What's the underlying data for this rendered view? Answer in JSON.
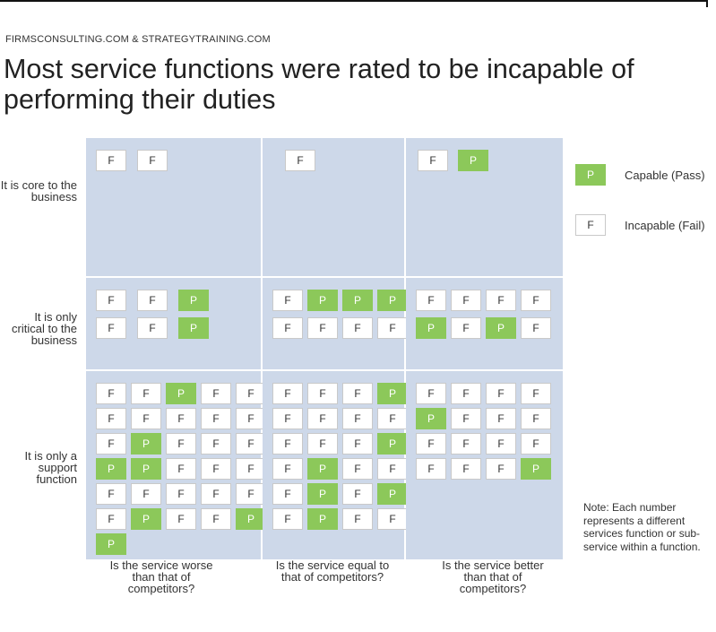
{
  "source": "FIRMSCONSULTING.COM & STRATEGYTRAINING.COM",
  "title": "Most service functions were rated to be incapable of performing their duties",
  "rows": [
    {
      "label": "It is core to the business"
    },
    {
      "label": "It is only critical to the business"
    },
    {
      "label": "It is only a support function"
    }
  ],
  "columns": [
    {
      "label": "Is the service worse than that of competitors?"
    },
    {
      "label": "Is the service equal to that of competitors?"
    },
    {
      "label": "Is the service better than that of competitors?"
    }
  ],
  "legend": [
    {
      "code": "P",
      "label": "Capable (Pass)",
      "color": "#8cc85a"
    },
    {
      "code": "F",
      "label": "Incapable (Fail)",
      "color": "#ffffff"
    }
  ],
  "note": "Note: Each number represents a different services function or sub-service within a function.",
  "colors": {
    "cell_background": "#cdd8e9",
    "pass": "#8cc85a",
    "fail": "#ffffff"
  },
  "matrix": [
    [
      [
        "F F"
      ],
      [
        "F"
      ],
      [
        "F P"
      ]
    ],
    [
      [
        "F F P",
        "F F P"
      ],
      [
        "F P P P",
        "F F F F"
      ],
      [
        "F F F F",
        "P F P F"
      ]
    ],
    [
      [
        "F F P F F",
        "F F F F F",
        "F P F F F",
        "P P F F F",
        "F F F F F",
        "F P F F P",
        "P"
      ],
      [
        "F F F P",
        "F F F F",
        "F F F P",
        "F P F F",
        "F P F P",
        "F P F F"
      ],
      [
        "F F F F",
        "P F F F",
        "F F F F",
        "F F F P"
      ]
    ]
  ]
}
